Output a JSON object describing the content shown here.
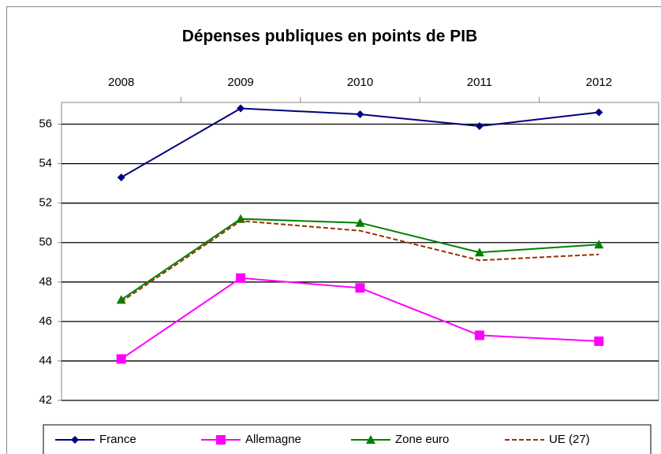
{
  "chart_data": {
    "type": "line",
    "title": "Dépenses publiques en points de PIB",
    "categories": [
      "2008",
      "2009",
      "2010",
      "2011",
      "2012"
    ],
    "series": [
      {
        "name": "France",
        "color": "#000080",
        "marker": "diamond",
        "dash": false,
        "values": [
          53.3,
          56.8,
          56.5,
          55.9,
          56.6
        ]
      },
      {
        "name": "Allemagne",
        "color": "#ff00ff",
        "marker": "square",
        "dash": false,
        "values": [
          44.1,
          48.2,
          47.7,
          45.3,
          45.0
        ]
      },
      {
        "name": "Zone euro",
        "color": "#008000",
        "marker": "triangle",
        "dash": false,
        "values": [
          47.1,
          51.2,
          51.0,
          49.5,
          49.9
        ]
      },
      {
        "name": "UE (27)",
        "color": "#993300",
        "marker": "none",
        "dash": true,
        "values": [
          47.0,
          51.1,
          50.6,
          49.1,
          49.4
        ]
      }
    ],
    "ylim": [
      42,
      57.1
    ],
    "yticks": [
      42,
      44,
      46,
      48,
      50,
      52,
      54,
      56
    ],
    "grid": true,
    "legend": "bottom"
  }
}
